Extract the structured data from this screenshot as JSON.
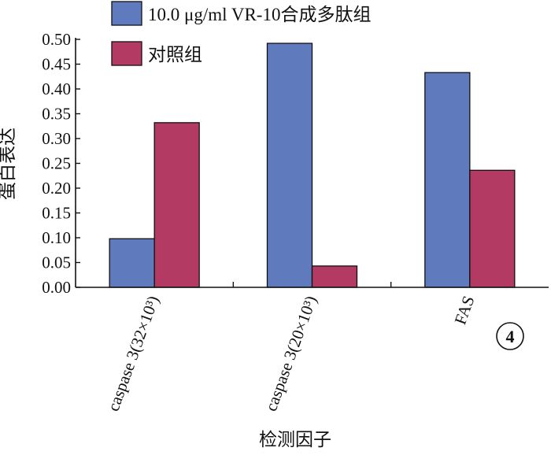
{
  "chart_data": {
    "type": "bar",
    "categories": [
      "caspase 3(32×10³)",
      "caspase 3(20×10³)",
      "FAS"
    ],
    "series": [
      {
        "name": "10.0 μg/ml VR-10合成多肽组",
        "values": [
          0.098,
          0.492,
          0.433
        ],
        "color": "#5f7bbd"
      },
      {
        "name": "对照组",
        "values": [
          0.332,
          0.043,
          0.236
        ],
        "color": "#b23a63"
      }
    ],
    "xlabel": "检测因子",
    "ylabel": "蛋白表达",
    "ylim": [
      0,
      0.5
    ],
    "yticks": [
      "0.00",
      "0.05",
      "0.10",
      "0.15",
      "0.20",
      "0.25",
      "0.30",
      "0.35",
      "0.40",
      "0.45",
      "0.50"
    ],
    "grid": false,
    "legend_position": "top-left",
    "badge": "4"
  }
}
